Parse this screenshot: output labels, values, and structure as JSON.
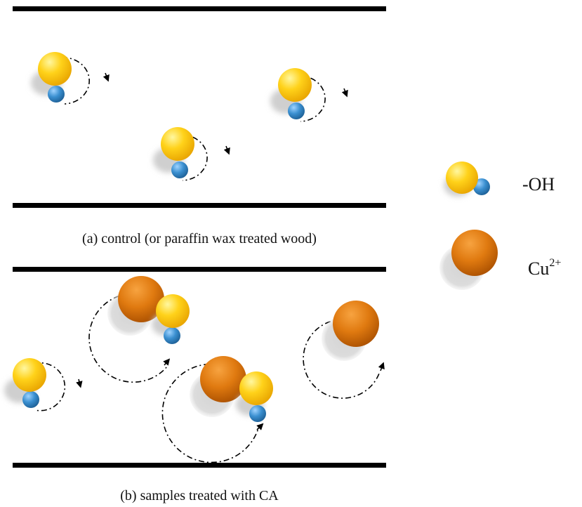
{
  "panels": [
    {
      "id": "a",
      "caption": "(a) control (or paraffin wax treated wood)"
    },
    {
      "id": "b",
      "caption": "(b) samples treated with CA"
    }
  ],
  "legend": {
    "hydroxyl": {
      "label": "-OH"
    },
    "copper": {
      "label_base": "Cu",
      "label_sup": "2+"
    }
  },
  "colors": {
    "oxygen": "#f5c400",
    "hydrogen": "#2e86c9",
    "copper": "#e07a10",
    "shadow": "#cfcfcf",
    "line": "#000000"
  }
}
